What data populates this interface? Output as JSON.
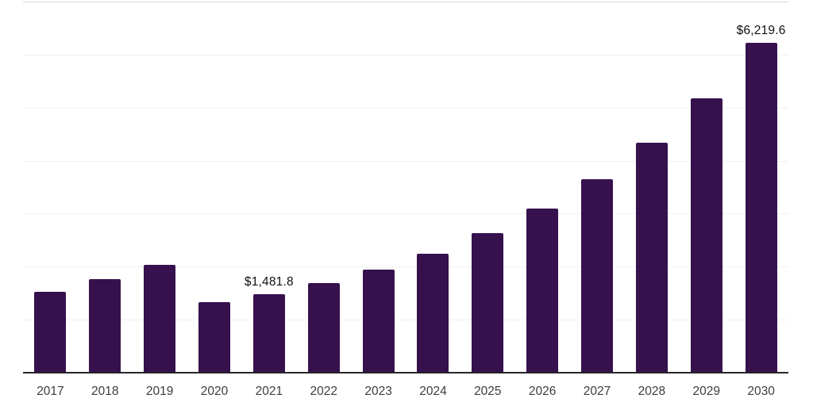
{
  "chart_data": {
    "type": "bar",
    "title": "",
    "xlabel": "",
    "ylabel": "",
    "categories": [
      "2017",
      "2018",
      "2019",
      "2020",
      "2021",
      "2022",
      "2023",
      "2024",
      "2025",
      "2026",
      "2027",
      "2028",
      "2029",
      "2030"
    ],
    "values": [
      1530,
      1770,
      2030,
      1325,
      1481.8,
      1685,
      1950,
      2245,
      2630,
      3090,
      3650,
      4335,
      5180,
      6219.6
    ],
    "data_labels": {
      "2021": "$1,481.8",
      "2030": "$6,219.6"
    },
    "ylim": [
      0,
      7000
    ],
    "gridline_step": 1000,
    "grid": true,
    "legend_position": "none",
    "colors": {
      "bar": "#36114D",
      "gridline": "#f0f0f4",
      "top_gridline": "#d7d7de",
      "axis_line": "#26262b",
      "data_label": "#101010",
      "tick_label": "#3d3d3d",
      "background": "#ffffff"
    }
  }
}
